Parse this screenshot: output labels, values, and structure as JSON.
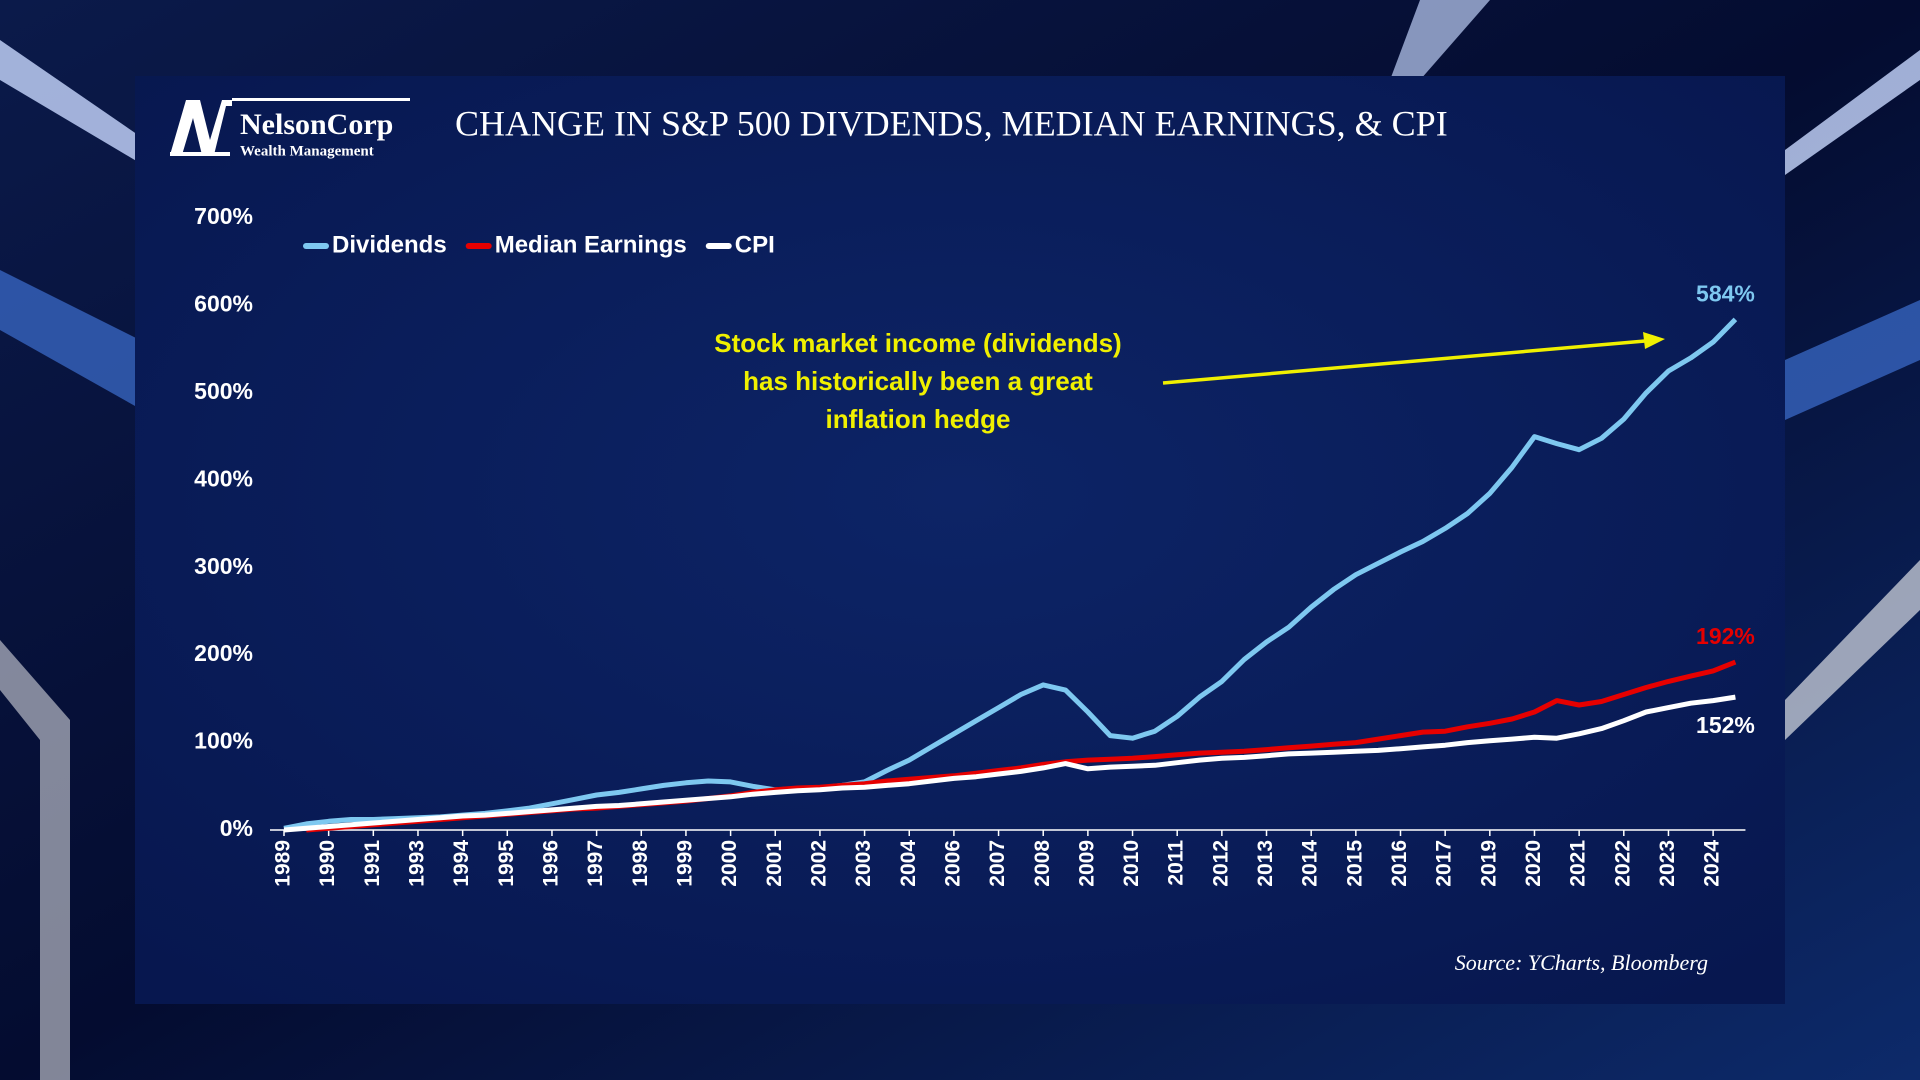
{
  "logo": {
    "name": "NelsonCorp",
    "tagline": "Wealth Management"
  },
  "source": "Source: YCharts, Bloomberg",
  "chart_data": {
    "type": "line",
    "title": "CHANGE IN S&P 500 DIVDENDS, MEDIAN EARNINGS, & CPI",
    "annotation": [
      "Stock market income (dividends)",
      "has historically been a great",
      "inflation hedge"
    ],
    "categories": [
      "1989",
      null,
      "1990",
      null,
      "1991",
      null,
      "1993",
      null,
      "1994",
      null,
      "1995",
      null,
      "1996",
      null,
      "1997",
      null,
      "1998",
      null,
      "1999",
      null,
      "2000",
      null,
      "2001",
      null,
      "2002",
      null,
      "2003",
      null,
      "2004",
      null,
      "2006",
      null,
      "2007",
      null,
      "2008",
      null,
      "2009",
      null,
      "2010",
      null,
      "2011",
      null,
      "2012",
      null,
      "2013",
      null,
      "2014",
      null,
      "2015",
      null,
      "2016",
      null,
      "2017",
      null,
      "2019",
      null,
      "2020",
      null,
      "2021",
      null,
      "2022",
      null,
      "2023",
      null,
      "2024",
      null
    ],
    "series": [
      {
        "name": "Dividends",
        "color": "#7ec8f0",
        "values": [
          2,
          7,
          10,
          12,
          12,
          13,
          14,
          15,
          17,
          19,
          22,
          25,
          30,
          35,
          40,
          43,
          47,
          51,
          54,
          56,
          55,
          50,
          46,
          47,
          48,
          51,
          55,
          68,
          80,
          95,
          110,
          125,
          140,
          155,
          166,
          160,
          135,
          108,
          105,
          113,
          130,
          152,
          170,
          195,
          215,
          232,
          255,
          275,
          292,
          305,
          318,
          330,
          345,
          362,
          385,
          415,
          450,
          442,
          435,
          448,
          470,
          500,
          525,
          540,
          558,
          584
        ],
        "value_labels": [
          null,
          null,
          null,
          null,
          null,
          null,
          null,
          null,
          null,
          null,
          null,
          null,
          null,
          null,
          null,
          null,
          null,
          null,
          null,
          null,
          null,
          null,
          null,
          null,
          null,
          null,
          null,
          null,
          null,
          null,
          null,
          null,
          null,
          null,
          null,
          null,
          null,
          null,
          null,
          null,
          null,
          null,
          null,
          null,
          null,
          null,
          null,
          null,
          null,
          null,
          null,
          null,
          null,
          null,
          null,
          null,
          null,
          null,
          null,
          null,
          null,
          null,
          null,
          null,
          null,
          "584%"
        ]
      },
      {
        "name": "Median Earnings",
        "color": "#e60000",
        "values": [
          null,
          0,
          2,
          4,
          6,
          8,
          10,
          12,
          14,
          16,
          18,
          20,
          22,
          24,
          25,
          27,
          29,
          31,
          33,
          36,
          39,
          43,
          46,
          48,
          49,
          51,
          53,
          56,
          58,
          60,
          62,
          65,
          68,
          71,
          75,
          78,
          80,
          81,
          82,
          84,
          86,
          88,
          89,
          90,
          92,
          94,
          96,
          98,
          100,
          104,
          108,
          112,
          113,
          118,
          122,
          127,
          135,
          148,
          143,
          147,
          155,
          163,
          170,
          176,
          182,
          192
        ],
        "value_labels": [
          null,
          null,
          null,
          null,
          null,
          null,
          null,
          null,
          null,
          null,
          null,
          null,
          null,
          null,
          null,
          null,
          null,
          null,
          null,
          null,
          null,
          null,
          null,
          null,
          null,
          null,
          null,
          null,
          null,
          null,
          null,
          null,
          null,
          null,
          null,
          null,
          null,
          null,
          null,
          null,
          null,
          null,
          null,
          null,
          null,
          null,
          null,
          null,
          null,
          null,
          null,
          null,
          null,
          null,
          null,
          null,
          null,
          null,
          null,
          null,
          null,
          null,
          null,
          null,
          null,
          "192%"
        ]
      },
      {
        "name": "CPI",
        "color": "#ffffff",
        "values": [
          0,
          2,
          4,
          6,
          8,
          10,
          12,
          14,
          16,
          17,
          19,
          21,
          23,
          25,
          27,
          28,
          30,
          32,
          34,
          36,
          38,
          41,
          43,
          45,
          46,
          48,
          49,
          51,
          53,
          56,
          59,
          61,
          64,
          67,
          71,
          76,
          70,
          72,
          73,
          74,
          77,
          80,
          82,
          83,
          85,
          87,
          88,
          89,
          90,
          91,
          93,
          95,
          97,
          100,
          102,
          104,
          106,
          105,
          110,
          116,
          125,
          135,
          140,
          145,
          148,
          152
        ],
        "value_labels": [
          null,
          null,
          null,
          null,
          null,
          null,
          null,
          null,
          null,
          null,
          null,
          null,
          null,
          null,
          null,
          null,
          null,
          null,
          null,
          null,
          null,
          null,
          null,
          null,
          null,
          null,
          null,
          null,
          null,
          null,
          null,
          null,
          null,
          null,
          null,
          null,
          null,
          null,
          null,
          null,
          null,
          null,
          null,
          null,
          null,
          null,
          null,
          null,
          null,
          null,
          null,
          null,
          null,
          null,
          null,
          null,
          null,
          null,
          null,
          null,
          null,
          null,
          null,
          null,
          null,
          "152%"
        ]
      }
    ],
    "ylim": [
      0,
      700
    ],
    "yticks": [
      {
        "value": 0,
        "label": "0%"
      },
      {
        "value": 100,
        "label": "100%"
      },
      {
        "value": 200,
        "label": "200%"
      },
      {
        "value": 300,
        "label": "300%"
      },
      {
        "value": 400,
        "label": "400%"
      },
      {
        "value": 500,
        "label": "500%"
      },
      {
        "value": 600,
        "label": "600%"
      },
      {
        "value": 700,
        "label": "700%"
      }
    ],
    "grid": false,
    "legend": "top-left"
  }
}
